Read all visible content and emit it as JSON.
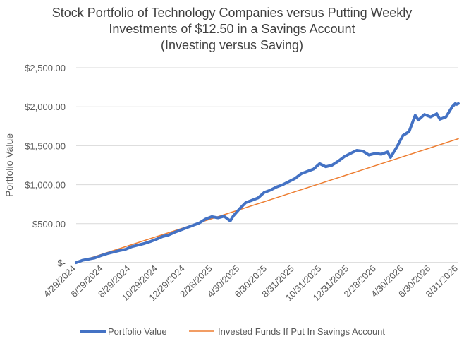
{
  "chart_data": {
    "type": "line",
    "title_lines": [
      "Stock Portfolio of Technology Companies versus Putting Weekly",
      "Investments of $12.50 in a Savings Account",
      "(Investing versus Saving)"
    ],
    "ylabel": "Portfolio Value",
    "xlabel": "",
    "ylim": [
      0,
      2500
    ],
    "y_tick_labels": [
      "$-",
      "$500.00",
      "$1,000.00",
      "$1,500.00",
      "$2,000.00",
      "$2,500.00"
    ],
    "x_tick_labels": [
      "4/29/2024",
      "6/29/2024",
      "8/29/2024",
      "10/29/2024",
      "12/29/2024",
      "2/28/2025",
      "4/30/2025",
      "6/30/2025",
      "8/31/2025",
      "10/31/2025",
      "12/31/2025",
      "2/28/2026",
      "4/30/2026",
      "6/30/2026",
      "8/31/2026"
    ],
    "x_range": [
      "2024-04-29",
      "2026-09-14"
    ],
    "grid": "horizontal",
    "legend_position": "bottom",
    "colors": {
      "portfolio": "#4472C4",
      "savings": "#ED7D31",
      "grid": "#D9D9D9",
      "axis": "#BFBFBF"
    },
    "series": [
      {
        "name": "Portfolio Value",
        "points": [
          [
            "2024-04-29",
            0
          ],
          [
            "2024-05-13",
            30
          ],
          [
            "2024-05-27",
            45
          ],
          [
            "2024-06-10",
            60
          ],
          [
            "2024-06-24",
            90
          ],
          [
            "2024-07-08",
            115
          ],
          [
            "2024-07-22",
            135
          ],
          [
            "2024-08-05",
            155
          ],
          [
            "2024-08-19",
            170
          ],
          [
            "2024-09-02",
            205
          ],
          [
            "2024-09-16",
            225
          ],
          [
            "2024-09-30",
            245
          ],
          [
            "2024-10-14",
            270
          ],
          [
            "2024-10-28",
            300
          ],
          [
            "2024-11-11",
            335
          ],
          [
            "2024-11-25",
            355
          ],
          [
            "2024-12-09",
            390
          ],
          [
            "2024-12-23",
            420
          ],
          [
            "2025-01-06",
            450
          ],
          [
            "2025-01-20",
            480
          ],
          [
            "2025-02-03",
            510
          ],
          [
            "2025-02-17",
            560
          ],
          [
            "2025-03-03",
            590
          ],
          [
            "2025-03-17",
            575
          ],
          [
            "2025-03-31",
            595
          ],
          [
            "2025-04-14",
            535
          ],
          [
            "2025-04-21",
            600
          ],
          [
            "2025-05-05",
            690
          ],
          [
            "2025-05-19",
            770
          ],
          [
            "2025-06-02",
            800
          ],
          [
            "2025-06-16",
            830
          ],
          [
            "2025-06-30",
            900
          ],
          [
            "2025-07-14",
            930
          ],
          [
            "2025-07-28",
            970
          ],
          [
            "2025-08-11",
            1000
          ],
          [
            "2025-08-25",
            1040
          ],
          [
            "2025-09-08",
            1080
          ],
          [
            "2025-09-22",
            1140
          ],
          [
            "2025-10-06",
            1170
          ],
          [
            "2025-10-20",
            1200
          ],
          [
            "2025-11-03",
            1270
          ],
          [
            "2025-11-17",
            1230
          ],
          [
            "2025-12-01",
            1250
          ],
          [
            "2025-12-15",
            1300
          ],
          [
            "2025-12-29",
            1360
          ],
          [
            "2026-01-12",
            1400
          ],
          [
            "2026-01-26",
            1440
          ],
          [
            "2026-02-09",
            1430
          ],
          [
            "2026-02-23",
            1380
          ],
          [
            "2026-03-09",
            1400
          ],
          [
            "2026-03-23",
            1390
          ],
          [
            "2026-04-06",
            1420
          ],
          [
            "2026-04-13",
            1350
          ],
          [
            "2026-04-27",
            1480
          ],
          [
            "2026-05-11",
            1630
          ],
          [
            "2026-05-25",
            1680
          ],
          [
            "2026-06-08",
            1890
          ],
          [
            "2026-06-15",
            1830
          ],
          [
            "2026-06-29",
            1900
          ],
          [
            "2026-07-13",
            1870
          ],
          [
            "2026-07-27",
            1910
          ],
          [
            "2026-08-03",
            1840
          ],
          [
            "2026-08-17",
            1870
          ],
          [
            "2026-08-31",
            2000
          ],
          [
            "2026-09-07",
            2040
          ],
          [
            "2026-09-10",
            2030
          ],
          [
            "2026-09-14",
            2040
          ]
        ]
      },
      {
        "name": "Invested Funds If Put In Savings Account",
        "points": [
          [
            "2024-04-29",
            0
          ],
          [
            "2026-09-14",
            1590
          ]
        ]
      }
    ]
  }
}
